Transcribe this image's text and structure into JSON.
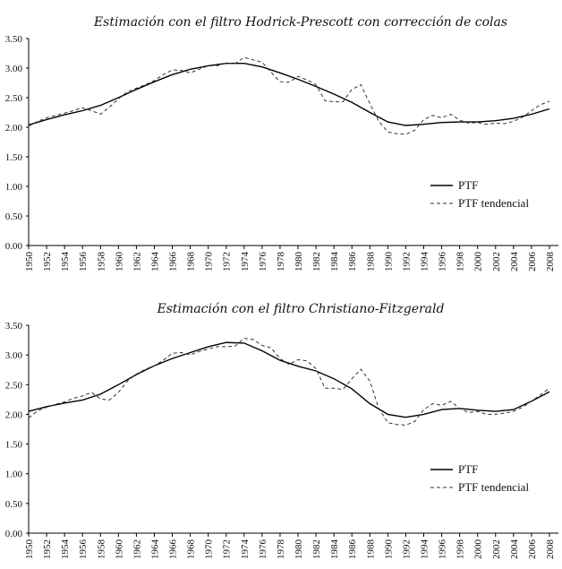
{
  "chart_data": [
    {
      "type": "line",
      "title": "Estimación con el filtro Hodrick-Prescott con corrección de colas",
      "xlabel": "",
      "ylabel": "",
      "xlim": [
        1950,
        2009
      ],
      "ylim": [
        0,
        3.5
      ],
      "y_ticks": [
        "0.00",
        "0.50",
        "1.00",
        "1.50",
        "2.00",
        "2.50",
        "3.00",
        "3.50"
      ],
      "x_ticks": [
        "1950",
        "1952",
        "1954",
        "1956",
        "1958",
        "1960",
        "1962",
        "1964",
        "1966",
        "1968",
        "1970",
        "1972",
        "1974",
        "1976",
        "1978",
        "1980",
        "1982",
        "1984",
        "1986",
        "1988",
        "1990",
        "1992",
        "1994",
        "1996",
        "1998",
        "2000",
        "2002",
        "2004",
        "2006",
        "2008"
      ],
      "legend_position": "bottom-right",
      "series": [
        {
          "name": "PTF",
          "style": "solid",
          "x": [
            1950,
            1952,
            1954,
            1956,
            1958,
            1960,
            1962,
            1964,
            1966,
            1968,
            1970,
            1972,
            1974,
            1976,
            1978,
            1980,
            1982,
            1984,
            1986,
            1988,
            1990,
            1992,
            1994,
            1996,
            1998,
            2000,
            2002,
            2004,
            2006,
            2008
          ],
          "y": [
            2.04,
            2.13,
            2.21,
            2.28,
            2.37,
            2.5,
            2.64,
            2.77,
            2.89,
            2.98,
            3.04,
            3.08,
            3.08,
            3.02,
            2.92,
            2.81,
            2.69,
            2.56,
            2.42,
            2.25,
            2.09,
            2.03,
            2.05,
            2.08,
            2.09,
            2.09,
            2.11,
            2.15,
            2.22,
            2.31
          ]
        },
        {
          "name": "PTF tendencial",
          "style": "dashed",
          "x": [
            1950,
            1951,
            1952,
            1953,
            1954,
            1955,
            1956,
            1957,
            1958,
            1959,
            1960,
            1961,
            1962,
            1963,
            1964,
            1965,
            1966,
            1967,
            1968,
            1969,
            1970,
            1971,
            1972,
            1973,
            1974,
            1975,
            1976,
            1977,
            1978,
            1979,
            1980,
            1981,
            1982,
            1983,
            1984,
            1985,
            1986,
            1987,
            1988,
            1989,
            1990,
            1991,
            1992,
            1993,
            1994,
            1995,
            1996,
            1997,
            1998,
            1999,
            2000,
            2001,
            2002,
            2003,
            2004,
            2005,
            2006,
            2007,
            2008
          ],
          "y": [
            2.02,
            2.1,
            2.16,
            2.2,
            2.24,
            2.28,
            2.33,
            2.28,
            2.22,
            2.34,
            2.48,
            2.6,
            2.66,
            2.72,
            2.79,
            2.89,
            2.97,
            2.96,
            2.92,
            2.98,
            3.04,
            3.04,
            3.08,
            3.08,
            3.18,
            3.14,
            3.1,
            2.93,
            2.77,
            2.76,
            2.86,
            2.8,
            2.72,
            2.45,
            2.43,
            2.43,
            2.64,
            2.72,
            2.4,
            2.1,
            1.92,
            1.89,
            1.88,
            1.95,
            2.13,
            2.2,
            2.16,
            2.22,
            2.12,
            2.07,
            2.08,
            2.05,
            2.07,
            2.06,
            2.1,
            2.17,
            2.28,
            2.38,
            2.44
          ]
        }
      ]
    },
    {
      "type": "line",
      "title": "Estimación con el filtro Christiano-Fitzgerald",
      "xlabel": "",
      "ylabel": "",
      "xlim": [
        1950,
        2009
      ],
      "ylim": [
        0,
        3.5
      ],
      "y_ticks": [
        "0.00",
        "0.50",
        "1.00",
        "1.50",
        "2.00",
        "2.50",
        "3.00",
        "3.50"
      ],
      "x_ticks": [
        "1950",
        "1952",
        "1954",
        "1956",
        "1958",
        "1960",
        "1962",
        "1964",
        "1966",
        "1968",
        "1970",
        "1972",
        "1974",
        "1976",
        "1978",
        "1980",
        "1982",
        "1984",
        "1986",
        "1988",
        "1990",
        "1992",
        "1994",
        "1996",
        "1998",
        "2000",
        "2002",
        "2004",
        "2006",
        "2008"
      ],
      "legend_position": "bottom-right",
      "series": [
        {
          "name": "PTF",
          "style": "solid",
          "x": [
            1950,
            1952,
            1954,
            1956,
            1958,
            1960,
            1962,
            1964,
            1966,
            1968,
            1970,
            1972,
            1974,
            1976,
            1978,
            1980,
            1982,
            1984,
            1986,
            1988,
            1990,
            1992,
            1994,
            1996,
            1998,
            2000,
            2002,
            2004,
            2006,
            2008
          ],
          "y": [
            2.05,
            2.13,
            2.19,
            2.24,
            2.34,
            2.5,
            2.67,
            2.82,
            2.94,
            3.04,
            3.14,
            3.21,
            3.2,
            3.07,
            2.91,
            2.81,
            2.73,
            2.6,
            2.43,
            2.18,
            2.0,
            1.95,
            2.0,
            2.08,
            2.1,
            2.07,
            2.05,
            2.08,
            2.22,
            2.38
          ]
        },
        {
          "name": "PTF tendencial",
          "style": "dashed",
          "x": [
            1950,
            1951,
            1952,
            1953,
            1954,
            1955,
            1956,
            1957,
            1958,
            1959,
            1960,
            1961,
            1962,
            1963,
            1964,
            1965,
            1966,
            1967,
            1968,
            1969,
            1970,
            1971,
            1972,
            1973,
            1974,
            1975,
            1976,
            1977,
            1978,
            1979,
            1980,
            1981,
            1982,
            1983,
            1984,
            1985,
            1986,
            1987,
            1988,
            1989,
            1990,
            1991,
            1992,
            1993,
            1994,
            1995,
            1996,
            1997,
            1998,
            1999,
            2000,
            2001,
            2002,
            2003,
            2004,
            2005,
            2006,
            2007,
            2008
          ],
          "y": [
            1.94,
            2.06,
            2.12,
            2.17,
            2.21,
            2.27,
            2.31,
            2.37,
            2.26,
            2.24,
            2.37,
            2.56,
            2.68,
            2.76,
            2.82,
            2.91,
            3.03,
            3.04,
            3.0,
            3.06,
            3.1,
            3.14,
            3.14,
            3.15,
            3.28,
            3.26,
            3.16,
            3.12,
            2.94,
            2.84,
            2.92,
            2.9,
            2.77,
            2.44,
            2.44,
            2.42,
            2.6,
            2.76,
            2.56,
            2.1,
            1.86,
            1.83,
            1.82,
            1.88,
            2.08,
            2.18,
            2.15,
            2.22,
            2.1,
            2.03,
            2.05,
            2.0,
            2.0,
            2.02,
            2.05,
            2.12,
            2.22,
            2.33,
            2.44
          ]
        }
      ]
    }
  ]
}
